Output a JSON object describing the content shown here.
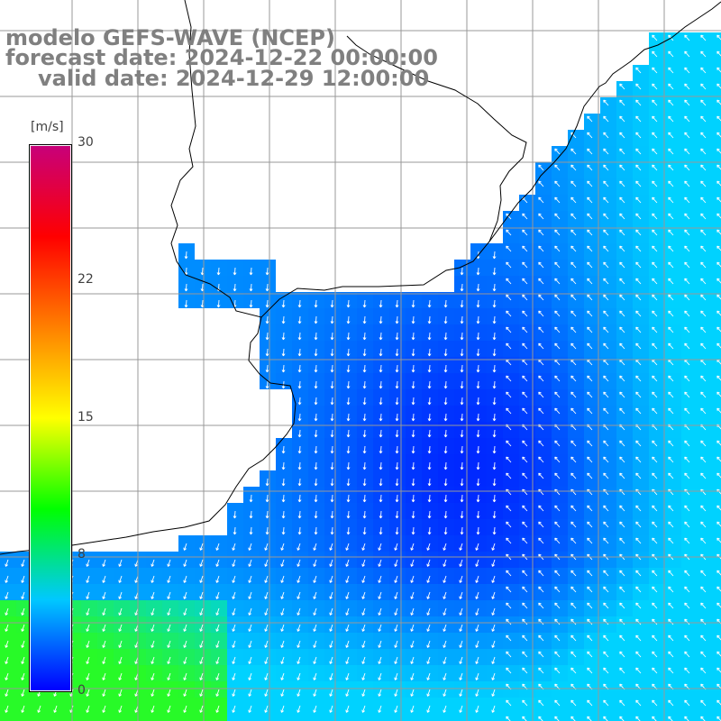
{
  "title": {
    "line1": "modelo GEFS-WAVE (NCEP)",
    "line2": "forecast date: 2024-12-22 00:00:00",
    "line3": "valid date: 2024-12-29 12:00:00"
  },
  "colorbar": {
    "unit": "[m/s]",
    "ticks": [
      "30",
      "22",
      "15",
      "8",
      "0"
    ],
    "tick_values": [
      30,
      22,
      15,
      8,
      0
    ],
    "min": 0,
    "max": 30,
    "colors": [
      "#0000ff",
      "#00c8ff",
      "#00ff00",
      "#ffff00",
      "#ff8000",
      "#ff0000",
      "#c8007a"
    ]
  },
  "map": {
    "variable": "wind speed",
    "background": "#ffffff",
    "land_color": "#ffffff",
    "coastline_color": "#000000",
    "grid_color": "#999999"
  }
}
